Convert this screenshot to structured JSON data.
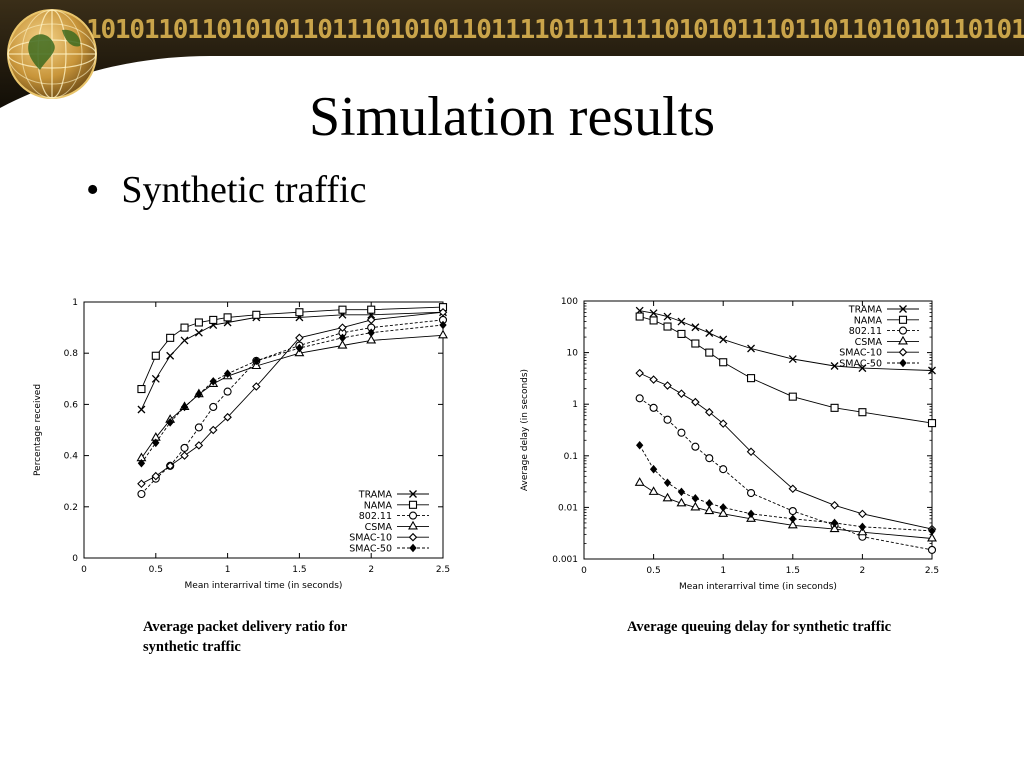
{
  "slide": {
    "title": "Simulation results",
    "bullet": "Synthetic traffic",
    "binary_banner": "10101101101010110111010101101111011111110101011101101101010110101",
    "colors": {
      "banner_dark": "#231c10",
      "banner_gold": "#c9a44a",
      "globe": "#c8953a"
    }
  },
  "captions": [
    "Average packet delivery ratio for synthetic traffic",
    "Average queuing delay for synthetic traffic"
  ],
  "chart_data": [
    {
      "type": "line",
      "xlabel": "Mean interarrival time (in seconds)",
      "ylabel": "Percentage received",
      "xlim": [
        0,
        2.5
      ],
      "ylim": [
        0,
        1
      ],
      "xticks": [
        "0",
        "0.5",
        "1",
        "1.5",
        "2",
        "2.5"
      ],
      "yticks": [
        "0",
        "0.2",
        "0.4",
        "0.6",
        "0.8",
        "1"
      ],
      "grid": false,
      "legend_position": "bottom-right",
      "series": [
        {
          "name": "TRAMA",
          "marker": "x",
          "dash": "solid",
          "x": [
            0.4,
            0.5,
            0.6,
            0.7,
            0.8,
            0.9,
            1.0,
            1.2,
            1.5,
            1.8,
            2.0,
            2.5
          ],
          "y": [
            0.58,
            0.7,
            0.79,
            0.85,
            0.88,
            0.91,
            0.92,
            0.94,
            0.94,
            0.95,
            0.95,
            0.96
          ]
        },
        {
          "name": "NAMA",
          "marker": "square",
          "dash": "solid",
          "x": [
            0.4,
            0.5,
            0.6,
            0.7,
            0.8,
            0.9,
            1.0,
            1.2,
            1.5,
            1.8,
            2.0,
            2.5
          ],
          "y": [
            0.66,
            0.79,
            0.86,
            0.9,
            0.92,
            0.93,
            0.94,
            0.95,
            0.96,
            0.97,
            0.97,
            0.98
          ]
        },
        {
          "name": "802.11",
          "marker": "circle",
          "dash": "dashed",
          "x": [
            0.4,
            0.5,
            0.6,
            0.7,
            0.8,
            0.9,
            1.0,
            1.2,
            1.5,
            1.8,
            2.0,
            2.5
          ],
          "y": [
            0.25,
            0.31,
            0.36,
            0.43,
            0.51,
            0.59,
            0.65,
            0.77,
            0.83,
            0.88,
            0.9,
            0.93
          ]
        },
        {
          "name": "CSMA",
          "marker": "triangle",
          "dash": "solid",
          "x": [
            0.4,
            0.5,
            0.6,
            0.7,
            0.8,
            0.9,
            1.0,
            1.2,
            1.5,
            1.8,
            2.0,
            2.5
          ],
          "y": [
            0.39,
            0.47,
            0.54,
            0.59,
            0.64,
            0.68,
            0.71,
            0.75,
            0.8,
            0.83,
            0.85,
            0.87
          ]
        },
        {
          "name": "SMAC-10",
          "marker": "diamond",
          "dash": "solid",
          "x": [
            0.4,
            0.5,
            0.6,
            0.7,
            0.8,
            0.9,
            1.0,
            1.2,
            1.5,
            1.8,
            2.0,
            2.5
          ],
          "y": [
            0.29,
            0.32,
            0.36,
            0.4,
            0.44,
            0.5,
            0.55,
            0.67,
            0.86,
            0.9,
            0.93,
            0.96
          ]
        },
        {
          "name": "SMAC-50",
          "marker": "filled-diamond",
          "dash": "dashed",
          "x": [
            0.4,
            0.5,
            0.6,
            0.7,
            0.8,
            0.9,
            1.0,
            1.2,
            1.5,
            1.8,
            2.0,
            2.5
          ],
          "y": [
            0.37,
            0.45,
            0.53,
            0.59,
            0.64,
            0.69,
            0.72,
            0.77,
            0.82,
            0.86,
            0.88,
            0.91
          ]
        }
      ]
    },
    {
      "type": "line",
      "xlabel": "Mean interarrival time (in seconds)",
      "ylabel": "Average delay (in seconds)",
      "xlim": [
        0,
        2.5
      ],
      "ylim": [
        0.001,
        100
      ],
      "yscale": "log",
      "xticks": [
        "0",
        "0.5",
        "1",
        "1.5",
        "2",
        "2.5"
      ],
      "yticks": [
        "0.001",
        "0.01",
        "0.1",
        "1",
        "10",
        "100"
      ],
      "grid": false,
      "legend_position": "top-right",
      "series": [
        {
          "name": "TRAMA",
          "marker": "x",
          "dash": "solid",
          "x": [
            0.4,
            0.5,
            0.6,
            0.7,
            0.8,
            0.9,
            1.0,
            1.2,
            1.5,
            1.8,
            2.0,
            2.5
          ],
          "y": [
            65,
            58,
            50,
            40,
            31,
            24,
            18,
            12,
            7.5,
            5.5,
            5.0,
            4.5
          ]
        },
        {
          "name": "NAMA",
          "marker": "square",
          "dash": "solid",
          "x": [
            0.4,
            0.5,
            0.6,
            0.7,
            0.8,
            0.9,
            1.0,
            1.2,
            1.5,
            1.8,
            2.0,
            2.5
          ],
          "y": [
            50,
            42,
            32,
            23,
            15,
            10,
            6.5,
            3.2,
            1.4,
            0.85,
            0.7,
            0.43
          ]
        },
        {
          "name": "802.11",
          "marker": "circle",
          "dash": "dashed",
          "x": [
            0.4,
            0.5,
            0.6,
            0.7,
            0.8,
            0.9,
            1.0,
            1.2,
            1.5,
            1.8,
            2.0,
            2.5
          ],
          "y": [
            1.3,
            0.85,
            0.5,
            0.28,
            0.15,
            0.09,
            0.055,
            0.019,
            0.0085,
            0.0045,
            0.0027,
            0.0015
          ]
        },
        {
          "name": "CSMA",
          "marker": "triangle",
          "dash": "solid",
          "x": [
            0.4,
            0.5,
            0.6,
            0.7,
            0.8,
            0.9,
            1.0,
            1.2,
            1.5,
            1.8,
            2.0,
            2.5
          ],
          "y": [
            0.03,
            0.02,
            0.015,
            0.012,
            0.01,
            0.0085,
            0.0075,
            0.006,
            0.0045,
            0.0038,
            0.0033,
            0.0025
          ]
        },
        {
          "name": "SMAC-10",
          "marker": "diamond",
          "dash": "solid",
          "x": [
            0.4,
            0.5,
            0.6,
            0.7,
            0.8,
            0.9,
            1.0,
            1.2,
            1.5,
            1.8,
            2.0,
            2.5
          ],
          "y": [
            4.0,
            3.0,
            2.3,
            1.6,
            1.1,
            0.7,
            0.42,
            0.12,
            0.023,
            0.011,
            0.0075,
            0.0038
          ]
        },
        {
          "name": "SMAC-50",
          "marker": "filled-diamond",
          "dash": "dashed",
          "x": [
            0.4,
            0.5,
            0.6,
            0.7,
            0.8,
            0.9,
            1.0,
            1.2,
            1.5,
            1.8,
            2.0,
            2.5
          ],
          "y": [
            0.16,
            0.055,
            0.03,
            0.02,
            0.015,
            0.012,
            0.01,
            0.0075,
            0.006,
            0.005,
            0.0042,
            0.0035
          ]
        }
      ]
    }
  ]
}
